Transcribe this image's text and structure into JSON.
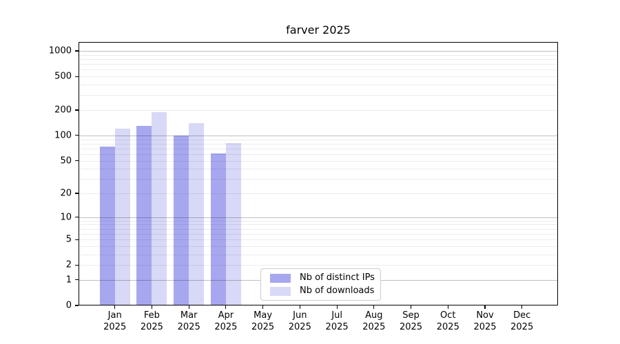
{
  "chart_data": {
    "type": "bar",
    "title": "farver 2025",
    "categories": [
      "Jan",
      "Feb",
      "Mar",
      "Apr",
      "May",
      "Jun",
      "Jul",
      "Aug",
      "Sep",
      "Oct",
      "Nov",
      "Dec"
    ],
    "category_year": "2025",
    "x_tick_labels": [
      "Jan 2025",
      "Feb 2025",
      "Mar 2025",
      "Apr 2025",
      "May 2025",
      "Jun 2025",
      "Jul 2025",
      "Aug 2025",
      "Sep 2025",
      "Oct 2025",
      "Nov 2025",
      "Dec 2025"
    ],
    "series": [
      {
        "name": "Nb of distinct IPs",
        "color": "#a7a7f0",
        "values": [
          74,
          129,
          100,
          61,
          0,
          0,
          0,
          0,
          0,
          0,
          0,
          0
        ]
      },
      {
        "name": "Nb of downloads",
        "color": "#d8d8f7",
        "values": [
          120,
          190,
          139,
          81,
          0,
          0,
          0,
          0,
          0,
          0,
          0,
          0
        ]
      }
    ],
    "y_axis": {
      "scale": "log1p",
      "tick_values": [
        0,
        1,
        2,
        5,
        10,
        20,
        50,
        100,
        200,
        500,
        1000
      ],
      "ylim": [
        0,
        1276
      ]
    },
    "legend": {
      "position": "bottom-center-inside"
    },
    "grid": {
      "visible": true,
      "minor_per_decade": [
        2,
        3,
        4,
        5,
        6,
        7,
        8,
        9
      ]
    },
    "colors": {
      "background": "#ffffff",
      "text": "#000000",
      "spine": "#000000",
      "major_grid": "#bfbfbf",
      "minor_grid": "#ececec",
      "bar_distinct_ips": "#a7a7f0",
      "bar_downloads": "#d8d8f7"
    }
  }
}
